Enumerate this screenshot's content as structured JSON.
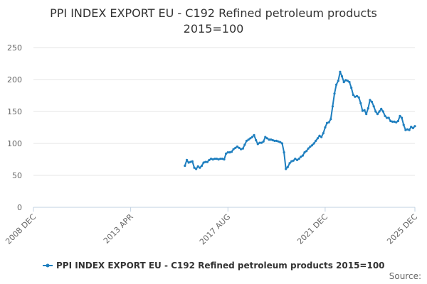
{
  "chart_data": {
    "type": "line",
    "title": "PPI INDEX EXPORT EU - C192 Refined petroleum products",
    "subtitle": "2015=100",
    "xlabel": "",
    "ylabel": "",
    "x_tick_labels": [
      "2008 DEC",
      "2013 APR",
      "2017 AUG",
      "2021 DEC",
      "2025 DEC"
    ],
    "x_tick_dates": [
      "2008-12",
      "2013-04",
      "2017-08",
      "2021-12",
      "2025-12"
    ],
    "xlim": [
      "2008-12",
      "2025-12"
    ],
    "y_ticks": [
      0,
      50,
      100,
      150,
      200,
      250
    ],
    "ylim": [
      0,
      250
    ],
    "grid": true,
    "legend": "bottom",
    "source_label": "Source:",
    "color": "#1f7fbf",
    "series": [
      {
        "name": "PPI INDEX EXPORT EU - C192 Refined petroleum products 2015=100",
        "x": [
          "2015-09",
          "2015-10",
          "2015-11",
          "2015-12",
          "2016-01",
          "2016-02",
          "2016-03",
          "2016-04",
          "2016-05",
          "2016-06",
          "2016-07",
          "2016-08",
          "2016-09",
          "2016-10",
          "2016-11",
          "2016-12",
          "2017-01",
          "2017-02",
          "2017-03",
          "2017-04",
          "2017-05",
          "2017-06",
          "2017-07",
          "2017-08",
          "2017-09",
          "2017-10",
          "2017-11",
          "2017-12",
          "2018-01",
          "2018-02",
          "2018-03",
          "2018-04",
          "2018-05",
          "2018-06",
          "2018-07",
          "2018-08",
          "2018-09",
          "2018-10",
          "2018-11",
          "2018-12",
          "2019-01",
          "2019-02",
          "2019-03",
          "2019-04",
          "2019-05",
          "2019-06",
          "2019-07",
          "2019-08",
          "2019-09",
          "2019-10",
          "2019-11",
          "2019-12",
          "2020-01",
          "2020-02",
          "2020-03",
          "2020-04",
          "2020-05",
          "2020-06",
          "2020-07",
          "2020-08",
          "2020-09",
          "2020-10",
          "2020-11",
          "2020-12",
          "2021-01",
          "2021-02",
          "2021-03",
          "2021-04",
          "2021-05",
          "2021-06",
          "2021-07",
          "2021-08",
          "2021-09",
          "2021-10",
          "2021-11",
          "2021-12",
          "2022-01",
          "2022-02",
          "2022-03",
          "2022-04",
          "2022-05",
          "2022-06",
          "2022-07",
          "2022-08",
          "2022-09",
          "2022-10",
          "2022-11",
          "2022-12",
          "2023-01",
          "2023-02",
          "2023-03",
          "2023-04",
          "2023-05",
          "2023-06",
          "2023-07",
          "2023-08",
          "2023-09",
          "2023-10",
          "2023-11",
          "2023-12",
          "2024-01",
          "2024-02",
          "2024-03",
          "2024-04",
          "2024-05",
          "2024-06",
          "2024-07",
          "2024-08",
          "2024-09",
          "2024-10",
          "2024-11",
          "2024-12",
          "2025-01",
          "2025-02",
          "2025-03",
          "2025-04",
          "2025-05",
          "2025-06",
          "2025-07",
          "2025-08",
          "2025-09",
          "2025-10",
          "2025-11",
          "2025-12"
        ],
        "y": [
          65,
          74,
          70,
          71,
          72,
          62,
          60,
          64,
          62,
          65,
          70,
          71,
          71,
          74,
          76,
          75,
          76,
          76,
          75,
          76,
          76,
          75,
          84,
          86,
          86,
          87,
          91,
          93,
          95,
          93,
          91,
          92,
          98,
          104,
          106,
          108,
          110,
          113,
          105,
          99,
          101,
          101,
          103,
          110,
          108,
          106,
          106,
          105,
          104,
          104,
          103,
          102,
          100,
          86,
          60,
          63,
          69,
          72,
          73,
          76,
          74,
          76,
          79,
          81,
          86,
          88,
          92,
          95,
          97,
          100,
          104,
          108,
          112,
          110,
          116,
          125,
          132,
          133,
          138,
          158,
          178,
          192,
          198,
          212,
          205,
          196,
          199,
          198,
          196,
          187,
          176,
          173,
          174,
          172,
          163,
          151,
          152,
          146,
          155,
          168,
          165,
          158,
          150,
          146,
          150,
          154,
          150,
          143,
          140,
          140,
          135,
          134,
          134,
          133,
          135,
          143,
          140,
          129,
          121,
          122,
          121,
          126,
          124,
          127
        ]
      }
    ]
  }
}
